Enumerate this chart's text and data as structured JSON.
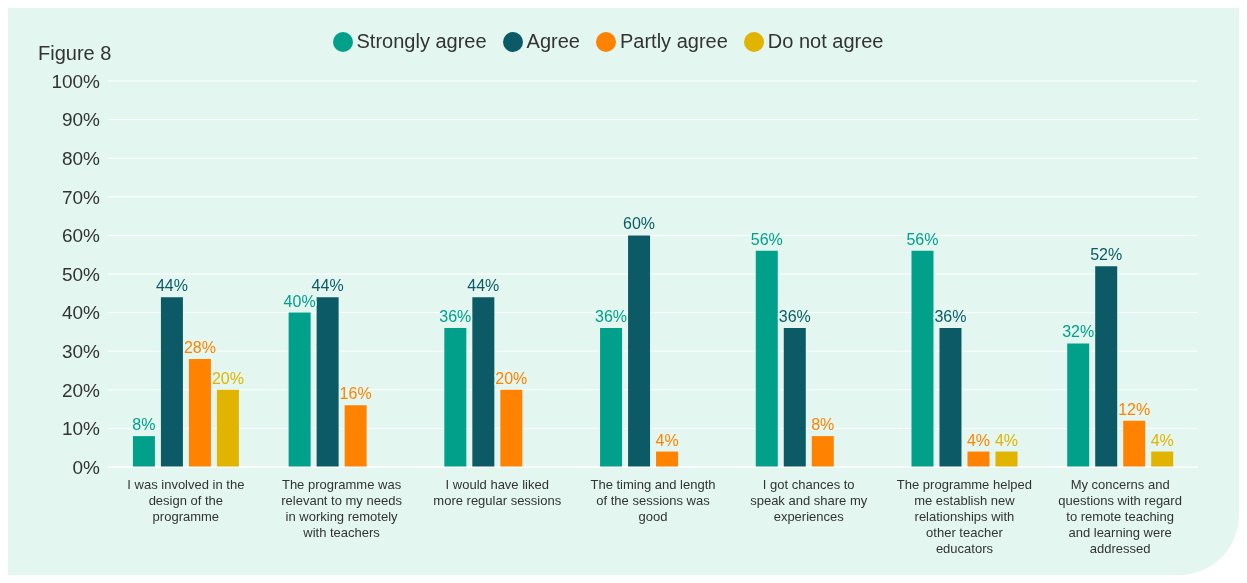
{
  "chart_data": {
    "type": "bar",
    "title": "Figure 8",
    "categories": [
      "I was involved in the design of the programme",
      "The programme was relevant to my needs in working remotely with teachers",
      "I would have liked more regular sessions",
      "The timing and length of the sessions was good",
      "I got chances to speak and share my experiences",
      "The programme helped me establish new relationships with other teacher educators",
      "My concerns and questions with regard to remote teaching and learning were addressed"
    ],
    "series": [
      {
        "name": "Strongly agree",
        "color": "#00a08a",
        "values": [
          8,
          40,
          36,
          36,
          56,
          56,
          32
        ],
        "value_labels": [
          "8%",
          "40%",
          "36%",
          "36%",
          "56%",
          "56%",
          "32%"
        ]
      },
      {
        "name": "Agree",
        "color": "#0b5a66",
        "values": [
          44,
          44,
          44,
          60,
          36,
          36,
          52
        ],
        "value_labels": [
          "44%",
          "44%",
          "44%",
          "60%",
          "36%",
          "36%",
          "52%"
        ]
      },
      {
        "name": "Partly agree",
        "color": "#ff8200",
        "values": [
          28,
          16,
          20,
          4,
          8,
          4,
          12
        ],
        "value_labels": [
          "28%",
          "16%",
          "20%",
          "4%",
          "8%",
          "4%",
          "12%"
        ]
      },
      {
        "name": "Do not agree",
        "color": "#e0b400",
        "values": [
          20,
          null,
          null,
          null,
          null,
          4,
          4
        ],
        "value_labels": [
          "20%",
          null,
          null,
          null,
          null,
          "4%",
          "4%"
        ]
      }
    ],
    "ylim": [
      0,
      100
    ],
    "yticks": [
      {
        "value": 0,
        "label": "0%"
      },
      {
        "value": 10,
        "label": "10%"
      },
      {
        "value": 20,
        "label": "20%"
      },
      {
        "value": 30,
        "label": "30%"
      },
      {
        "value": 40,
        "label": "40%"
      },
      {
        "value": 50,
        "label": "50%"
      },
      {
        "value": 60,
        "label": "60%"
      },
      {
        "value": 70,
        "label": "70%"
      },
      {
        "value": 80,
        "label": "80%"
      },
      {
        "value": 90,
        "label": "90%"
      },
      {
        "value": 100,
        "label": "100%"
      }
    ],
    "grid": "y",
    "legend": "top"
  }
}
